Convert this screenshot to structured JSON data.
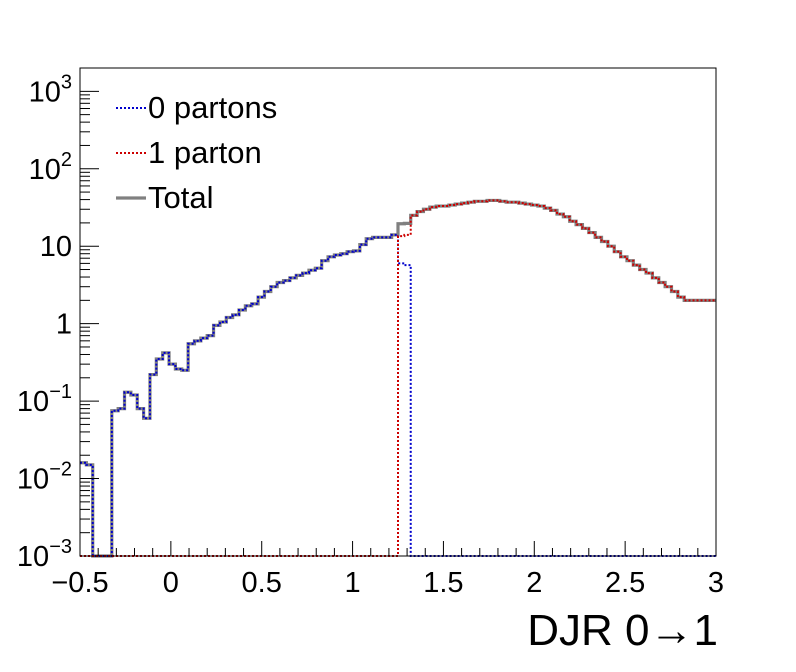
{
  "chart_data": {
    "type": "line",
    "style": "step-histogram",
    "xlabel": "DJR 0→1",
    "ylabel": "",
    "xlim": [
      -0.5,
      3.0
    ],
    "ylim": [
      0.001,
      2000
    ],
    "yscale": "log",
    "grid": false,
    "legend_position": "top-left",
    "x_ticks": [
      "−0.5",
      "0",
      "0.5",
      "1",
      "1.5",
      "2",
      "2.5",
      "3"
    ],
    "y_ticks": [
      {
        "base": "10",
        "exp": "−3"
      },
      {
        "base": "10",
        "exp": "−2"
      },
      {
        "base": "10",
        "exp": "−1"
      },
      {
        "base": "1",
        "exp": ""
      },
      {
        "base": "10",
        "exp": ""
      },
      {
        "base": "10",
        "exp": "2"
      },
      {
        "base": "10",
        "exp": "3"
      }
    ],
    "bin_edges": [
      -0.5,
      3.0
    ],
    "n_bins": 100,
    "series": [
      {
        "name": "0 partons",
        "color": "#0000cc",
        "linestyle": "dotted",
        "values": [
          0.016,
          0.015,
          0.001,
          0.001,
          0.001,
          0.075,
          0.08,
          0.13,
          0.12,
          0.08,
          0.06,
          0.22,
          0.35,
          0.42,
          0.3,
          0.26,
          0.25,
          0.55,
          0.6,
          0.65,
          0.7,
          0.95,
          1.05,
          1.2,
          1.3,
          1.5,
          1.7,
          1.8,
          2.2,
          2.6,
          3.0,
          3.4,
          3.6,
          3.9,
          4.2,
          4.5,
          4.9,
          5.2,
          6.5,
          7.3,
          7.7,
          8.0,
          8.5,
          8.7,
          10.5,
          12.5,
          13.0,
          13.0,
          13.0,
          14.0,
          6.0,
          5.7,
          0.001,
          0.001,
          0.001,
          0.001,
          0.001,
          0.001,
          0.001,
          0.001,
          0.001,
          0.001,
          0.001,
          0.001,
          0.001,
          0.001,
          0.001,
          0.001,
          0.001,
          0.001,
          0.001,
          0.001,
          0.001,
          0.001,
          0.001,
          0.001,
          0.001,
          0.001,
          0.001,
          0.001,
          0.001,
          0.001,
          0.001,
          0.001,
          0.001,
          0.001,
          0.001,
          0.001,
          0.001,
          0.001,
          0.001,
          0.001,
          0.001,
          0.001,
          0.001,
          0.001,
          0.001,
          0.001,
          0.001,
          0.001
        ]
      },
      {
        "name": "1 parton",
        "color": "#cc0000",
        "linestyle": "dotted",
        "values": [
          0.001,
          0.001,
          0.001,
          0.001,
          0.001,
          0.001,
          0.001,
          0.001,
          0.001,
          0.001,
          0.001,
          0.001,
          0.001,
          0.001,
          0.001,
          0.001,
          0.001,
          0.001,
          0.001,
          0.001,
          0.001,
          0.001,
          0.001,
          0.001,
          0.001,
          0.001,
          0.001,
          0.001,
          0.001,
          0.001,
          0.001,
          0.001,
          0.001,
          0.001,
          0.001,
          0.001,
          0.001,
          0.001,
          0.001,
          0.001,
          0.001,
          0.001,
          0.001,
          0.001,
          0.001,
          0.001,
          0.001,
          0.001,
          0.001,
          0.001,
          13.5,
          14.0,
          25.0,
          28.0,
          30.0,
          32.0,
          33.0,
          33.0,
          34.0,
          35.0,
          36.0,
          37.0,
          38.0,
          38.0,
          39.0,
          39.0,
          38.0,
          37.0,
          37.0,
          36.0,
          35.0,
          34.0,
          33.0,
          31.0,
          29.0,
          26.0,
          24.0,
          21.0,
          19.0,
          17.0,
          15.0,
          13.0,
          11.5,
          10.0,
          8.5,
          7.3,
          6.5,
          5.7,
          5.0,
          4.5,
          3.9,
          3.4,
          3.0,
          2.6,
          2.2,
          2.0,
          2.0,
          2.0,
          2.0,
          2.0
        ]
      },
      {
        "name": "Total",
        "color": "#808080",
        "linestyle": "solid",
        "values": [
          0.016,
          0.015,
          0.001,
          0.001,
          0.001,
          0.075,
          0.08,
          0.13,
          0.12,
          0.08,
          0.06,
          0.22,
          0.35,
          0.42,
          0.3,
          0.26,
          0.25,
          0.55,
          0.6,
          0.65,
          0.7,
          0.95,
          1.05,
          1.2,
          1.3,
          1.5,
          1.7,
          1.8,
          2.2,
          2.6,
          3.0,
          3.4,
          3.6,
          3.9,
          4.2,
          4.5,
          4.9,
          5.2,
          6.5,
          7.3,
          7.7,
          8.0,
          8.5,
          8.7,
          10.5,
          12.5,
          13.0,
          13.0,
          13.0,
          14.0,
          19.5,
          19.7,
          25.0,
          28.0,
          30.0,
          32.0,
          33.0,
          33.0,
          34.0,
          35.0,
          36.0,
          37.0,
          38.0,
          38.0,
          39.0,
          39.0,
          38.0,
          37.0,
          37.0,
          36.0,
          35.0,
          34.0,
          33.0,
          31.0,
          29.0,
          26.0,
          24.0,
          21.0,
          19.0,
          17.0,
          15.0,
          13.0,
          11.5,
          10.0,
          8.5,
          7.3,
          6.5,
          5.7,
          5.0,
          4.5,
          3.9,
          3.4,
          3.0,
          2.6,
          2.2,
          2.0,
          2.0,
          2.0,
          2.0,
          2.0
        ]
      }
    ]
  }
}
